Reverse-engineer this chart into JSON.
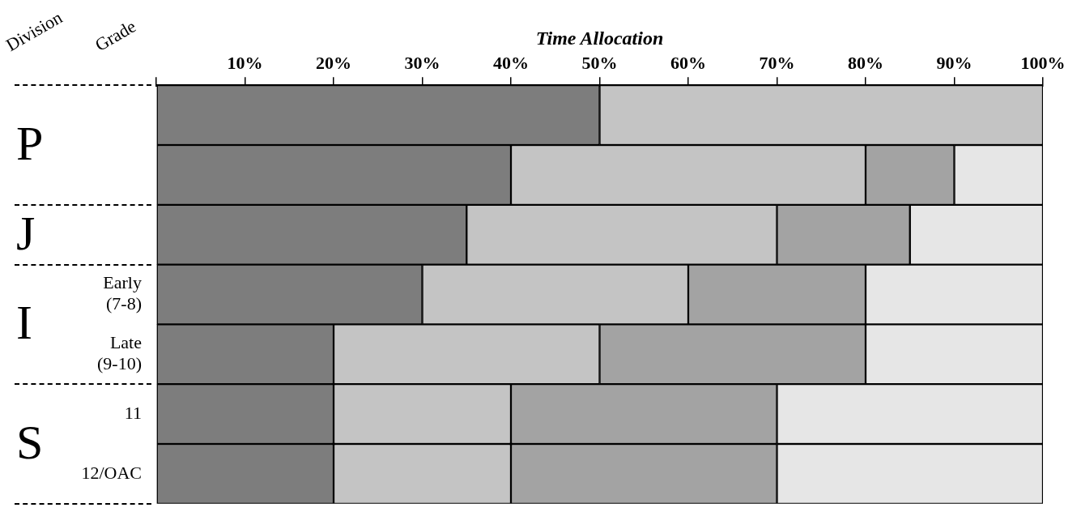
{
  "chart_data": {
    "type": "bar",
    "orientation": "horizontal",
    "stacked": true,
    "xlabel": "Time Allocation",
    "categories": [
      null,
      null,
      null,
      "Early (7-8)",
      "Late (9-10)",
      "11",
      "12/OAC"
    ],
    "series": [
      {
        "color": "#7d7d7d",
        "values": [
          50,
          40,
          35,
          30,
          20,
          20,
          20
        ]
      },
      {
        "color": "#c4c4c4",
        "values": [
          50,
          40,
          35,
          30,
          30,
          20,
          20
        ]
      },
      {
        "color": "#a3a3a3",
        "values": [
          null,
          10,
          15,
          20,
          30,
          30,
          30
        ]
      },
      {
        "color": "#e6e6e6",
        "values": [
          null,
          10,
          15,
          20,
          20,
          30,
          30
        ]
      }
    ],
    "xlim": [
      0,
      100
    ],
    "xticks": [
      {
        "value": 0,
        "label": null
      },
      {
        "value": 10,
        "label": "10%"
      },
      {
        "value": 20,
        "label": "20%"
      },
      {
        "value": 30,
        "label": "30%"
      },
      {
        "value": 40,
        "label": "40%"
      },
      {
        "value": 50,
        "label": "50%"
      },
      {
        "value": 60,
        "label": "60%"
      },
      {
        "value": 70,
        "label": "70%"
      },
      {
        "value": 80,
        "label": "80%"
      },
      {
        "value": 90,
        "label": "90%"
      },
      {
        "value": 100,
        "label": "100%"
      }
    ],
    "grid": false,
    "legend": false,
    "annotations": [
      "Division",
      "Grade",
      "P",
      "J",
      "I",
      "S"
    ]
  }
}
